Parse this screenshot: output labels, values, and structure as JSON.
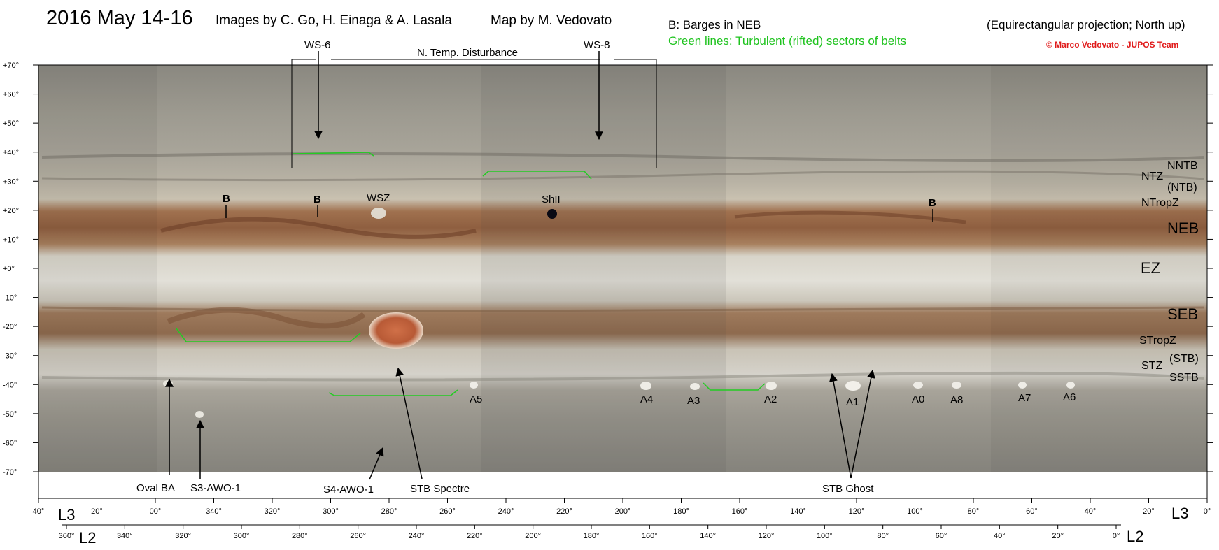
{
  "header": {
    "title": "2016 May 14-16",
    "credits": "Images by C. Go, H. Einaga & A. Lasala",
    "map_by": "Map by M. Vedovato",
    "legend_barges": "B:  Barges in NEB",
    "legend_green": "Green lines:  Turbulent (rifted) sectors of belts",
    "projection": "(Equirectangular projection; North up)",
    "copyright": "© Marco Vedovato - JUPOS Team"
  },
  "colors": {
    "green_lines": "#22cc22",
    "copyright_red": "#e01b1b",
    "belt_brown": "#9a6a4a",
    "grs_red": "#c0603a"
  },
  "lat_ticks": [
    "+70°",
    "+60°",
    "+50°",
    "+40°",
    "+30°",
    "+20°",
    "+10°",
    "+0°",
    "-10°",
    "-20°",
    "-30°",
    "-40°",
    "-50°",
    "-60°",
    "-70°"
  ],
  "l3_ticks": [
    "40°",
    "20°",
    "00°",
    "340°",
    "320°",
    "300°",
    "280°",
    "260°",
    "240°",
    "220°",
    "200°",
    "180°",
    "160°",
    "140°",
    "120°",
    "100°",
    "80°",
    "60°",
    "40°",
    "20°",
    "0°"
  ],
  "l2_ticks": [
    "360°",
    "340°",
    "320°",
    "300°",
    "280°",
    "260°",
    "240°",
    "220°",
    "200°",
    "180°",
    "160°",
    "140°",
    "120°",
    "100°",
    "80°",
    "60°",
    "40°",
    "20°",
    "0°"
  ],
  "axis_names": {
    "l3_left": "L3",
    "l3_right": "L3",
    "l2_left": "L2",
    "l2_right": "L2"
  },
  "disturbance": {
    "label": "N. Temp. Disturbance",
    "ws6": "WS-6",
    "ws8": "WS-8"
  },
  "belt_labels": {
    "nntb": "NNTB",
    "ntz": "NTZ",
    "ntb": "(NTB)",
    "ntropz": "NTropZ",
    "neb": "NEB",
    "ez": "EZ",
    "seb": "SEB",
    "stropz": "STropZ",
    "stz": "STZ",
    "stb": "(STB)",
    "sstb": "SSTB"
  },
  "features": {
    "barge": "B",
    "wsz": "WSZ",
    "shadow": "ShII",
    "ovals": [
      "A5",
      "A4",
      "A3",
      "A2",
      "A1",
      "A0",
      "A8",
      "A7",
      "A6"
    ],
    "oval_ba": "Oval BA",
    "s3": "S3-AWO-1",
    "s4": "S4-AWO-1",
    "stb_spectre": "STB Spectre",
    "stb_ghost": "STB Ghost"
  }
}
